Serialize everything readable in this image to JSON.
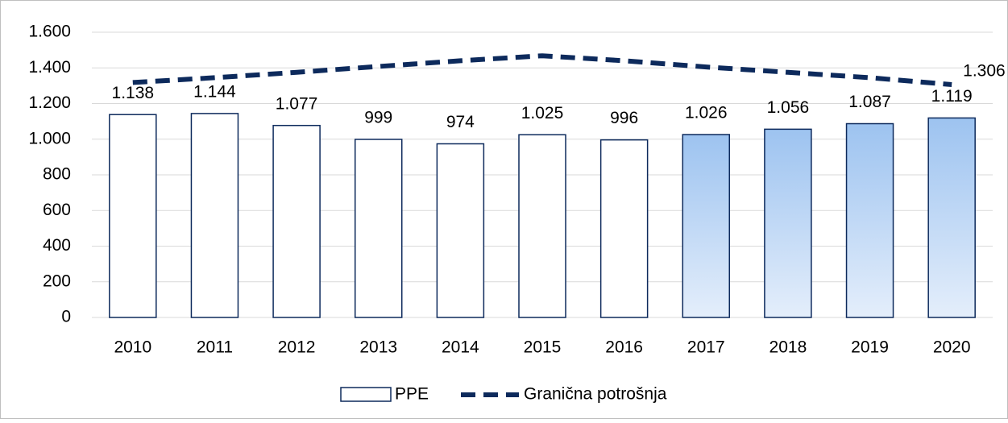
{
  "chart_data": {
    "type": "bar_line",
    "categories": [
      "2010",
      "2011",
      "2012",
      "2013",
      "2014",
      "2015",
      "2016",
      "2017",
      "2018",
      "2019",
      "2020"
    ],
    "series": [
      {
        "name": "PPE",
        "type": "bar",
        "color": "#0d2a5c",
        "colors": [
          "#ffffff",
          "#ffffff",
          "#ffffff",
          "#ffffff",
          "#ffffff",
          "#ffffff",
          "#ffffff",
          "#9dc3f0",
          "#9dc3f0",
          "#9dc3f0",
          "#9dc3f0"
        ],
        "values": [
          1138,
          1144,
          1077,
          999,
          974,
          1025,
          996,
          1026,
          1056,
          1087,
          1119
        ],
        "value_labels": [
          "1.138",
          "1.144",
          "1.077",
          "999",
          "974",
          "1.025",
          "996",
          "1.026",
          "1.056",
          "1.087",
          "1.119"
        ]
      },
      {
        "name": "Granična potrošnja",
        "type": "line",
        "color": "#0d2a5c",
        "dashed": true,
        "values": [
          1318,
          1345,
          1375,
          1408,
          1440,
          1468,
          1440,
          1405,
          1375,
          1345,
          1306
        ],
        "value_labels": [
          null,
          null,
          null,
          null,
          null,
          null,
          null,
          null,
          null,
          null,
          "1.306"
        ]
      }
    ],
    "ylim": [
      0,
      1600
    ],
    "yticks": [
      0,
      200,
      400,
      600,
      800,
      {
        "value": 1000,
        "label": "1.000"
      },
      {
        "value": 1200,
        "label": "1.200"
      },
      {
        "value": 1400,
        "label": "1.400"
      },
      {
        "value": 1600,
        "label": "1.600"
      }
    ],
    "grid": true,
    "legend": "bottom"
  }
}
